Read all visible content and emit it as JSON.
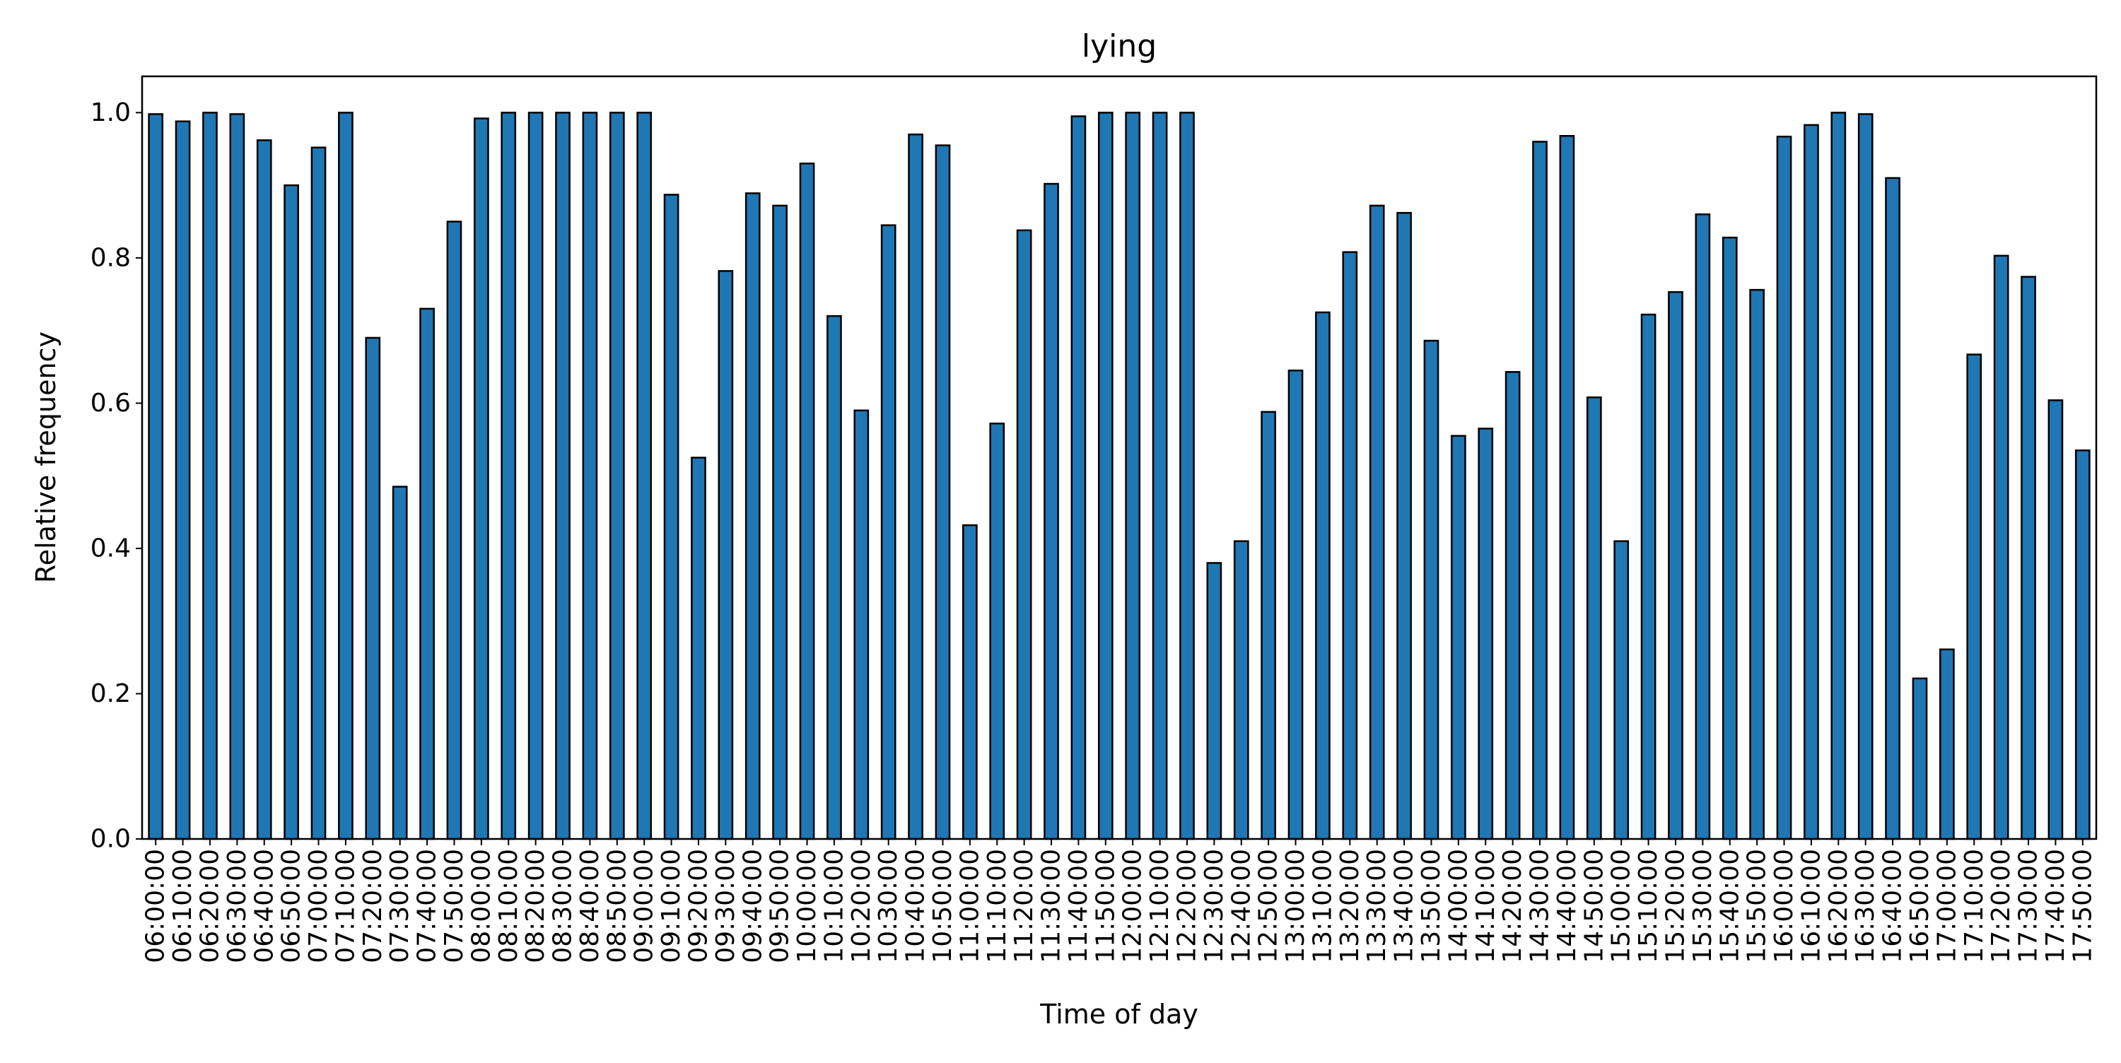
{
  "chart_data": {
    "type": "bar",
    "title": "lying",
    "xlabel": "Time of day",
    "ylabel": "Relative frequency",
    "ylim": [
      0,
      1.05
    ],
    "yticks": [
      "0.0",
      "0.2",
      "0.4",
      "0.6",
      "0.8",
      "1.0"
    ],
    "grid": false,
    "legend": "none",
    "categories": [
      "06:00:00",
      "06:10:00",
      "06:20:00",
      "06:30:00",
      "06:40:00",
      "06:50:00",
      "07:00:00",
      "07:10:00",
      "07:20:00",
      "07:30:00",
      "07:40:00",
      "07:50:00",
      "08:00:00",
      "08:10:00",
      "08:20:00",
      "08:30:00",
      "08:40:00",
      "08:50:00",
      "09:00:00",
      "09:10:00",
      "09:20:00",
      "09:30:00",
      "09:40:00",
      "09:50:00",
      "10:00:00",
      "10:10:00",
      "10:20:00",
      "10:30:00",
      "10:40:00",
      "10:50:00",
      "11:00:00",
      "11:10:00",
      "11:20:00",
      "11:30:00",
      "11:40:00",
      "11:50:00",
      "12:00:00",
      "12:10:00",
      "12:20:00",
      "12:30:00",
      "12:40:00",
      "12:50:00",
      "13:00:00",
      "13:10:00",
      "13:20:00",
      "13:30:00",
      "13:40:00",
      "13:50:00",
      "14:00:00",
      "14:10:00",
      "14:20:00",
      "14:30:00",
      "14:40:00",
      "14:50:00",
      "15:00:00",
      "15:10:00",
      "15:20:00",
      "15:30:00",
      "15:40:00",
      "15:50:00",
      "16:00:00",
      "16:10:00",
      "16:20:00",
      "16:30:00",
      "16:40:00",
      "16:50:00",
      "17:00:00",
      "17:10:00",
      "17:20:00",
      "17:30:00",
      "17:40:00",
      "17:50:00"
    ],
    "values": [
      0.998,
      0.988,
      1.0,
      0.998,
      0.962,
      0.9,
      0.952,
      1.0,
      0.69,
      0.485,
      0.73,
      0.85,
      0.992,
      1.0,
      1.0,
      1.0,
      1.0,
      1.0,
      1.0,
      0.887,
      0.525,
      0.782,
      0.889,
      0.872,
      0.93,
      0.72,
      0.59,
      0.845,
      0.97,
      0.955,
      0.432,
      0.572,
      0.838,
      0.902,
      0.995,
      1.0,
      1.0,
      1.0,
      1.0,
      0.38,
      0.41,
      0.588,
      0.645,
      0.725,
      0.808,
      0.872,
      0.862,
      0.686,
      0.555,
      0.565,
      0.643,
      0.96,
      0.968,
      0.608,
      0.41,
      0.722,
      0.753,
      0.86,
      0.828,
      0.756,
      0.967,
      0.983,
      1.0,
      0.998,
      0.91,
      0.221,
      0.261,
      0.667,
      0.803,
      0.774,
      0.604,
      0.535
    ],
    "bar_color": "#1f77b4",
    "edge_color": "#000000"
  }
}
